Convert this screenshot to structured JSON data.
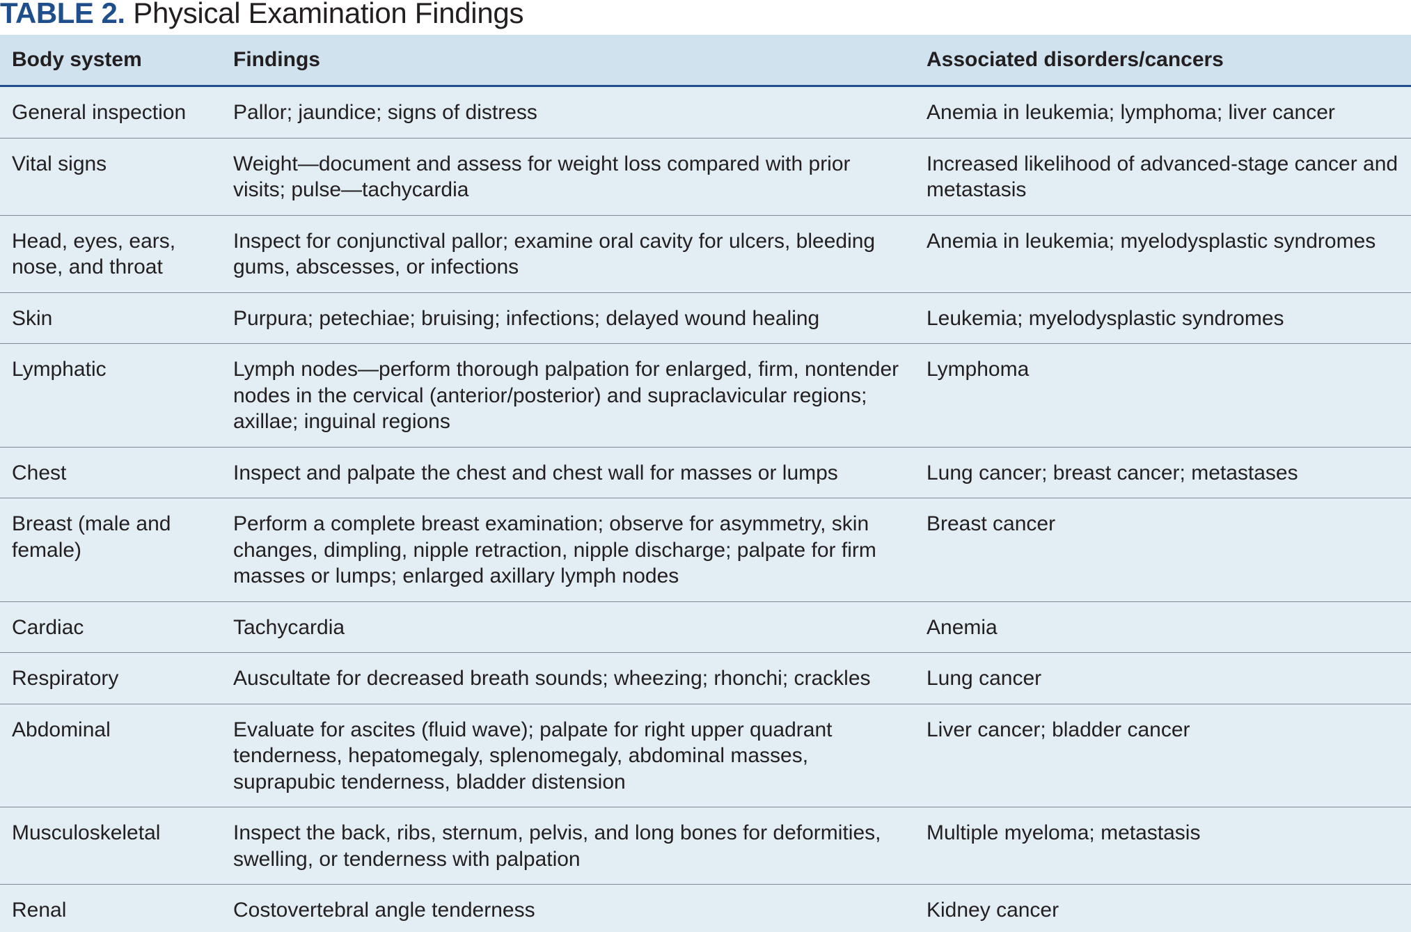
{
  "title": {
    "label": "TABLE 2.",
    "text": "Physical Examination Findings"
  },
  "table": {
    "headers": [
      "Body system",
      "Findings",
      "Associated disorders/cancers"
    ],
    "rows": [
      [
        "General inspection",
        "Pallor; jaundice; signs of distress",
        "Anemia in leukemia; lymphoma; liver cancer"
      ],
      [
        "Vital signs",
        "Weight—document and assess for weight loss compared with prior visits; pulse—tachycardia",
        "Increased likelihood of advanced-stage cancer and metastasis"
      ],
      [
        "Head, eyes, ears, nose, and throat",
        "Inspect for conjunctival pallor; examine oral cavity for ulcers, bleeding gums, abscesses, or infections",
        "Anemia in leukemia; myelodysplastic syndromes"
      ],
      [
        "Skin",
        "Purpura; petechiae; bruising; infections; delayed wound healing",
        "Leukemia; myelodysplastic syndromes"
      ],
      [
        "Lymphatic",
        "Lymph nodes—perform thorough palpation for enlarged, firm, nontender nodes in the cervical (anterior/posterior) and supraclavicular regions; axillae; inguinal regions",
        "Lymphoma"
      ],
      [
        "Chest",
        "Inspect and palpate the chest and chest wall for masses or lumps",
        "Lung cancer; breast cancer; metastases"
      ],
      [
        "Breast (male and female)",
        "Perform a complete breast examination; observe for asymmetry, skin changes, dimpling, nipple retraction, nipple discharge; palpate for firm masses or lumps; enlarged axillary lymph nodes",
        "Breast cancer"
      ],
      [
        "Cardiac",
        "Tachycardia",
        "Anemia"
      ],
      [
        "Respiratory",
        "Auscultate for decreased breath sounds; wheezing; rhonchi; crackles",
        "Lung cancer"
      ],
      [
        "Abdominal",
        "Evaluate for ascites (fluid wave); palpate for right upper quadrant tenderness, hepatomegaly, splenomegaly, abdominal masses, suprapubic tenderness, bladder distension",
        "Liver cancer; bladder cancer"
      ],
      [
        "Musculoskeletal",
        "Inspect the back, ribs, sternum, pelvis, and long bones for deformities, swelling, or tenderness with palpation",
        "Multiple myeloma; metastasis"
      ],
      [
        "Renal",
        "Costovertebral angle tenderness",
        "Kidney cancer"
      ]
    ]
  },
  "colors": {
    "title_label": "#1f4e8c",
    "header_background": "#cfe2ee",
    "body_background": "#e2edf4",
    "header_rule": "#1f4e8c",
    "row_rule": "#7d8a91"
  }
}
